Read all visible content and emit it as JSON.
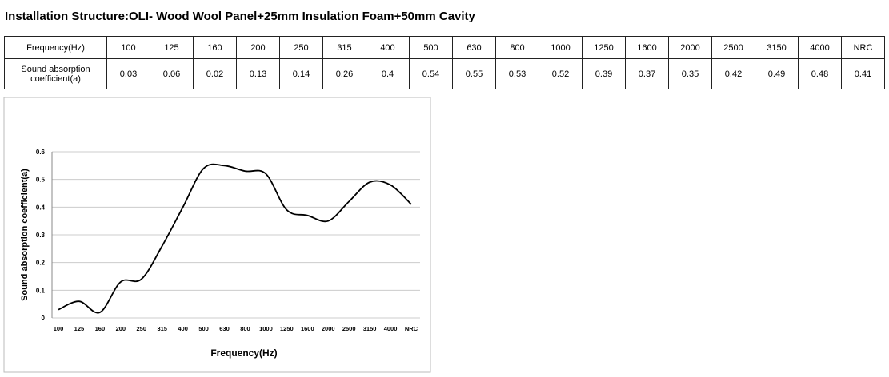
{
  "title": "Installation Structure:OLI- Wood Wool Panel+25mm Insulation Foam+50mm Cavity",
  "table": {
    "header": [
      "Frequency(Hz)",
      "100",
      "125",
      "160",
      "200",
      "250",
      "315",
      "400",
      "500",
      "630",
      "800",
      "1000",
      "1250",
      "1600",
      "2000",
      "2500",
      "3150",
      "4000",
      "NRC"
    ],
    "rows": [
      [
        "Sound absorption coefficient(a)",
        "0.03",
        "0.06",
        "0.02",
        "0.13",
        "0.14",
        "0.26",
        "0.4",
        "0.54",
        "0.55",
        "0.53",
        "0.52",
        "0.39",
        "0.37",
        "0.35",
        "0.42",
        "0.49",
        "0.48",
        "0.41"
      ]
    ]
  },
  "chart_data": {
    "type": "line",
    "x_label": "Frequency(Hz)",
    "y_label": "Sound absorption coefficient(a)",
    "categories": [
      "100",
      "125",
      "160",
      "200",
      "250",
      "315",
      "400",
      "500",
      "630",
      "800",
      "1000",
      "1250",
      "1600",
      "2000",
      "2500",
      "3150",
      "4000",
      "NRC"
    ],
    "values": [
      0.03,
      0.06,
      0.02,
      0.13,
      0.14,
      0.26,
      0.4,
      0.54,
      0.55,
      0.53,
      0.52,
      0.39,
      0.37,
      0.35,
      0.42,
      0.49,
      0.48,
      0.41
    ],
    "color": "#000000",
    "ylim": [
      0,
      0.6
    ],
    "yticks": [
      0,
      0.1,
      0.2,
      0.3,
      0.4,
      0.5,
      0.6
    ],
    "grid": true
  }
}
